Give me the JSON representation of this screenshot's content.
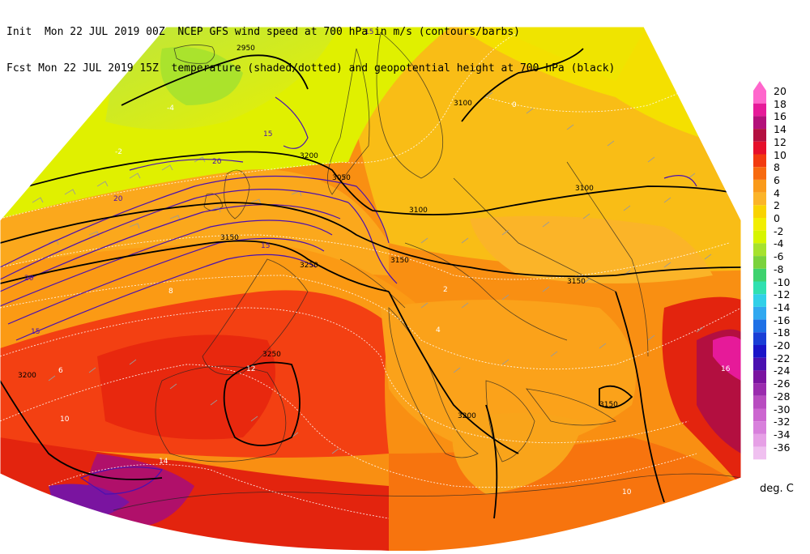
{
  "header": {
    "line1_left": "Init  Mon 22 JUL 2019 00Z",
    "line1_right": "NCEP GFS wind speed at 700 hPa in m/s (contours/barbs)",
    "line2_left": "Fcst Mon 22 JUL 2019 15Z",
    "line2_right": "temperature (shaded/dotted) and geopotential height at 700 hPa (black)"
  },
  "legend": {
    "units": "deg. C",
    "entries": [
      {
        "value": "20",
        "color": "#ff66cc"
      },
      {
        "value": "18",
        "color": "#e61a99"
      },
      {
        "value": "16",
        "color": "#b3107a"
      },
      {
        "value": "14",
        "color": "#b30f40"
      },
      {
        "value": "12",
        "color": "#e60f2b"
      },
      {
        "value": "10",
        "color": "#f23a0f"
      },
      {
        "value": "8",
        "color": "#f76a0f"
      },
      {
        "value": "6",
        "color": "#fa9a1a"
      },
      {
        "value": "4",
        "color": "#fbb428"
      },
      {
        "value": "2",
        "color": "#f9d300"
      },
      {
        "value": "0",
        "color": "#f2ee00"
      },
      {
        "value": "-2",
        "color": "#d7f500"
      },
      {
        "value": "-4",
        "color": "#a6e22e"
      },
      {
        "value": "-6",
        "color": "#7ad23c"
      },
      {
        "value": "-8",
        "color": "#3ed26e"
      },
      {
        "value": "-10",
        "color": "#2fe0b0"
      },
      {
        "value": "-12",
        "color": "#30d0e8"
      },
      {
        "value": "-14",
        "color": "#30a8f0"
      },
      {
        "value": "-16",
        "color": "#1e70e6"
      },
      {
        "value": "-18",
        "color": "#1a3ed6"
      },
      {
        "value": "-20",
        "color": "#1a14c8"
      },
      {
        "value": "-22",
        "color": "#4a10b0"
      },
      {
        "value": "-24",
        "color": "#7a14a0"
      },
      {
        "value": "-26",
        "color": "#9a2cae"
      },
      {
        "value": "-28",
        "color": "#b84cc0"
      },
      {
        "value": "-30",
        "color": "#cc66d0"
      },
      {
        "value": "-32",
        "color": "#d880dc"
      },
      {
        "value": "-34",
        "color": "#e6a0e6"
      },
      {
        "value": "-36",
        "color": "#f0c0f0"
      }
    ]
  },
  "labels": {
    "h2950": "2950",
    "h3100a": "3100",
    "h3100b": "3100",
    "h3100c": "3100",
    "h3150a": "3150",
    "h3150b": "3150",
    "h3150c": "3150",
    "h3150d": "3150",
    "h3200a": "3200",
    "h3200b": "3200",
    "h3200c": "3200",
    "h3250a": "3250",
    "h3250b": "3250",
    "h3050": "3050",
    "w15a": "15",
    "w15b": "15",
    "w15c": "15",
    "w15d": "15",
    "w20a": "20",
    "w20b": "20",
    "w20c": "20",
    "t0": "0",
    "tm2": "-2",
    "tm4": "-4",
    "t2": "2",
    "t4": "4",
    "t6": "6",
    "t8": "8",
    "t10a": "10",
    "t10b": "10",
    "t12": "12",
    "t14": "14",
    "t16": "16"
  }
}
